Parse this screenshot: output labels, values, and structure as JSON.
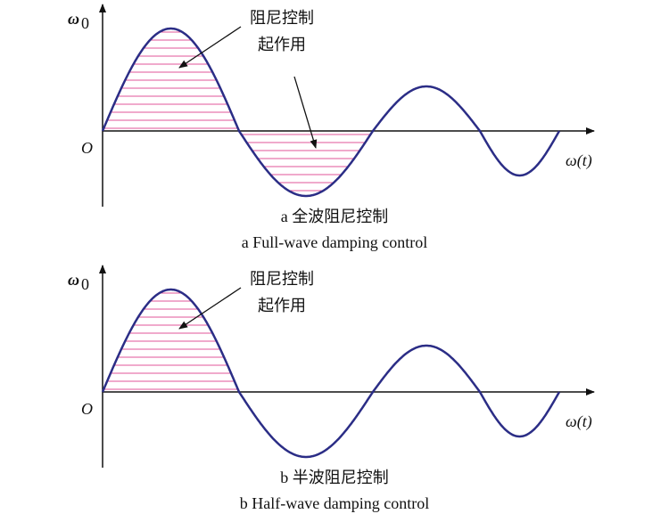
{
  "panels": [
    {
      "y_axis_label": "ω",
      "y_axis_subscript": "0",
      "origin_label": "O",
      "x_axis_label": "ω(t)",
      "annotation": [
        "阻尼控制",
        "起作用"
      ],
      "caption_zh": "a 全波阻尼控制",
      "caption_en": "a Full-wave damping control"
    },
    {
      "y_axis_label": "ω",
      "y_axis_subscript": "0",
      "origin_label": "O",
      "x_axis_label": "ω(t)",
      "annotation": [
        "阻尼控制",
        "起作用"
      ],
      "caption_zh": "b 半波阻尼控制",
      "caption_en": "b Half-wave damping control"
    }
  ]
}
